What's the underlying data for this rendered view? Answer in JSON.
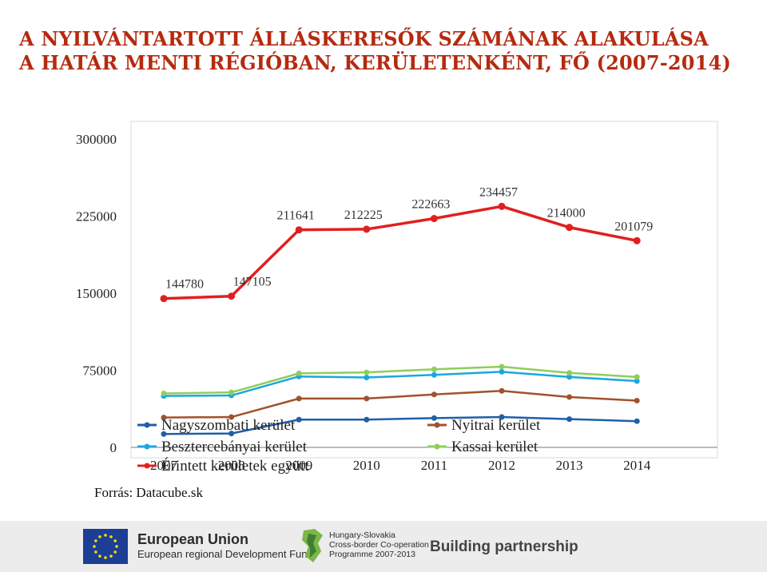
{
  "title_lines": [
    "A NYILVÁNTARTOTT ÁLLÁSKERESŐK SZÁMÁNAK ALAKULÁSA",
    "A HATÁR MENTI RÉGIÓBAN, KERÜLETENKÉNT, FŐ (2007-2014)"
  ],
  "source": "Forrás: Datacube.sk",
  "chart_data": {
    "type": "line",
    "title": "A NYILVÁNTARTOTT ÁLLÁSKERESŐK SZÁMÁNAK ALAKULÁSA A HATÁR MENTI RÉGIÓBAN, KERÜLETENKÉNT, FŐ (2007-2014)",
    "categories": [
      "2007",
      "2008",
      "2009",
      "2010",
      "2011",
      "2012",
      "2013",
      "2014"
    ],
    "ylim": [
      0,
      300000
    ],
    "y_ticks": [
      0,
      75000,
      150000,
      225000,
      300000
    ],
    "y_tick_labels": [
      "0",
      "75000",
      "150000",
      "225000",
      "300000"
    ],
    "grid": false,
    "legend_position": "bottom",
    "series": [
      {
        "name": "Nagyszombati kerület",
        "color": "#1f5fa8",
        "values": [
          13000,
          13500,
          27000,
          27000,
          28500,
          29500,
          27500,
          25500
        ],
        "data_labels": []
      },
      {
        "name": "Nyitrai kerület",
        "color": "#a0522d",
        "values": [
          29000,
          29500,
          47500,
          47500,
          51500,
          55000,
          49000,
          45500
        ],
        "data_labels": []
      },
      {
        "name": "Besztercebányai kerület",
        "color": "#1aa7e0",
        "values": [
          50000,
          50500,
          69000,
          68000,
          70500,
          73500,
          68500,
          64500
        ],
        "data_labels": []
      },
      {
        "name": "Kassai kerület",
        "color": "#8fce5a",
        "values": [
          52500,
          53500,
          72000,
          73000,
          76000,
          78500,
          72500,
          68500
        ],
        "data_labels": []
      },
      {
        "name": "Érintett kerületek együtt",
        "color": "#e0201f",
        "values": [
          144780,
          147105,
          211641,
          212225,
          222663,
          234457,
          214000,
          201079
        ],
        "data_labels": [
          "144780",
          "147105",
          "211641",
          "212225",
          "222663",
          "234457",
          "214000",
          "201079"
        ]
      }
    ]
  },
  "logos": {
    "eu_name": "European Union",
    "eu_fund": "European regional Development Fund",
    "hs_lines": [
      "Hungary-Slovakia",
      "Cross-border Co-operation",
      "Programme 2007-2013"
    ],
    "partnership": "Building partnership"
  }
}
